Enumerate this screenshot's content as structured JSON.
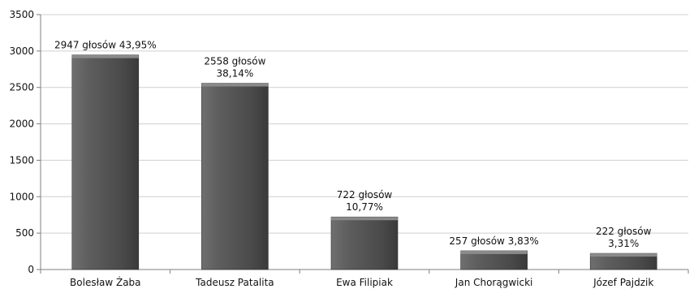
{
  "chart_data": {
    "type": "bar",
    "title": "",
    "xlabel": "",
    "ylabel": "",
    "ylim": [
      0,
      3500
    ],
    "yticks": [
      0,
      500,
      1000,
      1500,
      2000,
      2500,
      3000,
      3500
    ],
    "grid": true,
    "legend": "none",
    "categories": [
      "Bolesław Żaba",
      "Tadeusz Patalita",
      "Ewa Filipiak",
      "Jan Chorągwicki",
      "Józef Pajdzik"
    ],
    "values": [
      2947,
      2558,
      722,
      257,
      222
    ],
    "data_labels": [
      [
        "2947 głosów 43,95%"
      ],
      [
        "2558 głosów",
        "38,14%"
      ],
      [
        "722 głosów",
        "10,77%"
      ],
      [
        "257 głosów  3,83%"
      ],
      [
        "222 głosów",
        "3,31%"
      ]
    ],
    "colors": {
      "bar": "#5a5a5a",
      "bar_light": "#7a7a7a",
      "bar_dark": "#3a3a3a",
      "grid": "#cfcfcf",
      "axis": "#7f7f7f"
    }
  }
}
